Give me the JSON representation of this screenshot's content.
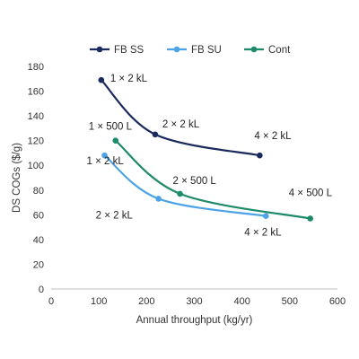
{
  "chart_data": {
    "type": "line",
    "xlabel": "Annual throughput (kg/yr)",
    "ylabel": "DS COGs ($/g)",
    "xlim": [
      0,
      600
    ],
    "ylim": [
      0,
      180
    ],
    "xticks": [
      0,
      100,
      200,
      300,
      400,
      500,
      600
    ],
    "yticks": [
      0,
      20,
      40,
      60,
      80,
      100,
      120,
      140,
      160,
      180
    ],
    "grid": false,
    "legend_position": "top",
    "series": [
      {
        "name": "FB SS",
        "color": "#1b2a5e",
        "points": [
          {
            "x": 105,
            "y": 169,
            "label": "1 × 2 kL"
          },
          {
            "x": 218,
            "y": 125,
            "label": "2 × 2 kL"
          },
          {
            "x": 437,
            "y": 108,
            "label": "4 × 2 kL"
          }
        ]
      },
      {
        "name": "FB SU",
        "color": "#4da3e8",
        "points": [
          {
            "x": 112,
            "y": 108,
            "label": "1 × 2 kL"
          },
          {
            "x": 225,
            "y": 73,
            "label": "2 × 2 kL"
          },
          {
            "x": 450,
            "y": 59,
            "label": "4 × 2 kL"
          }
        ]
      },
      {
        "name": "Cont",
        "color": "#1d8a6a",
        "points": [
          {
            "x": 135,
            "y": 120,
            "label": "1 × 500 L"
          },
          {
            "x": 270,
            "y": 77,
            "label": "2 × 500 L"
          },
          {
            "x": 543,
            "y": 57,
            "label": "4 × 500 L"
          }
        ]
      }
    ]
  }
}
